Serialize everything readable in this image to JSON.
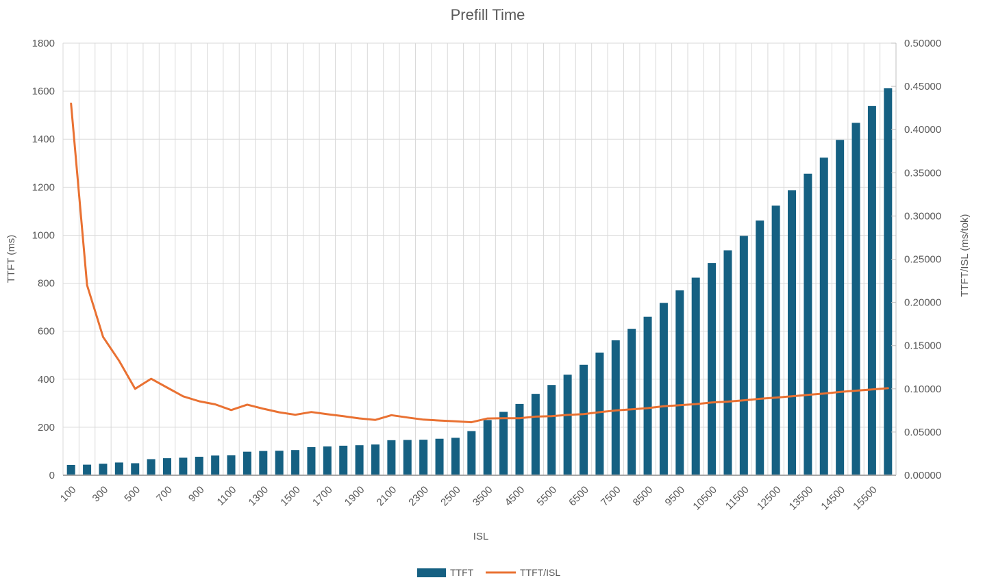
{
  "title": "Prefill Time",
  "axes": {
    "left_title": "TTFT (ms)",
    "right_title": "TTFT/ISL  (ms/tok)",
    "x_title": "ISL"
  },
  "legend": [
    {
      "label": "TTFT",
      "type": "bar",
      "color": "#156082"
    },
    {
      "label": "TTFT/ISL",
      "type": "line",
      "color": "#E97132"
    }
  ],
  "colors": {
    "bar": "#156082",
    "line": "#E97132",
    "text": "#595959",
    "gridline": "#D9D9D9",
    "axis_line": "#A6A6A6",
    "background": "#FFFFFF"
  },
  "chart_data": {
    "type": "bar",
    "subtype": "dual-axis bar+line combo",
    "title": "Prefill Time",
    "xlabel": "ISL",
    "ylabel_left": "TTFT (ms)",
    "ylabel_right": "TTFT/ISL  (ms/tok)",
    "grid": true,
    "legend_position": "bottom",
    "left_axis": {
      "min": 0,
      "max": 1800,
      "step": 200
    },
    "right_axis": {
      "min": 0,
      "max": 0.5,
      "step": 0.05,
      "decimals": 5
    },
    "x_label_every": 2,
    "x_tick_labels": [
      "100",
      "300",
      "500",
      "700",
      "900",
      "1100",
      "1300",
      "1500",
      "1700",
      "1900",
      "2100",
      "2300",
      "2500",
      "3500",
      "4500",
      "5500",
      "6500",
      "7500",
      "8500",
      "9500",
      "10500",
      "11500",
      "12500",
      "13500",
      "14500",
      "15500"
    ],
    "categories": [
      100,
      200,
      300,
      400,
      500,
      600,
      700,
      800,
      900,
      1000,
      1100,
      1200,
      1300,
      1400,
      1500,
      1600,
      1700,
      1800,
      1900,
      2000,
      2100,
      2200,
      2300,
      2400,
      2500,
      3000,
      3500,
      4000,
      4500,
      5000,
      5500,
      6000,
      6500,
      7000,
      7500,
      8000,
      8500,
      9000,
      9500,
      10000,
      10500,
      11000,
      11500,
      12000,
      12500,
      13000,
      13500,
      14000,
      14500,
      15000,
      15500,
      16000
    ],
    "series": [
      {
        "name": "TTFT",
        "type": "bar",
        "axis": "left",
        "color": "#156082",
        "values": [
          43,
          44,
          48,
          53,
          50,
          67,
          71,
          73,
          77,
          82,
          83,
          98,
          101,
          102,
          105,
          117,
          120,
          123,
          125,
          128,
          146,
          147,
          148,
          152,
          156,
          184,
          230,
          264,
          297,
          339,
          376,
          419,
          460,
          511,
          562,
          610,
          660,
          718,
          770,
          823,
          884,
          937,
          997,
          1061,
          1123,
          1187,
          1256,
          1323,
          1397,
          1468,
          1538,
          1612
        ]
      },
      {
        "name": "TTFT/ISL",
        "type": "line",
        "axis": "right",
        "color": "#E97132",
        "values": [
          0.43,
          0.22,
          0.16,
          0.1325,
          0.1,
          0.11167,
          0.10143,
          0.09125,
          0.08556,
          0.082,
          0.07545,
          0.08167,
          0.07692,
          0.07286,
          0.07,
          0.07313,
          0.07059,
          0.06833,
          0.06579,
          0.064,
          0.06952,
          0.06682,
          0.06435,
          0.06333,
          0.0624,
          0.06133,
          0.06571,
          0.066,
          0.066,
          0.0678,
          0.06836,
          0.06983,
          0.07077,
          0.073,
          0.07493,
          0.07625,
          0.07765,
          0.07978,
          0.08105,
          0.0823,
          0.08419,
          0.08518,
          0.0867,
          0.08842,
          0.08984,
          0.09131,
          0.09304,
          0.0945,
          0.09634,
          0.09787,
          0.09923,
          0.10075
        ]
      }
    ]
  }
}
